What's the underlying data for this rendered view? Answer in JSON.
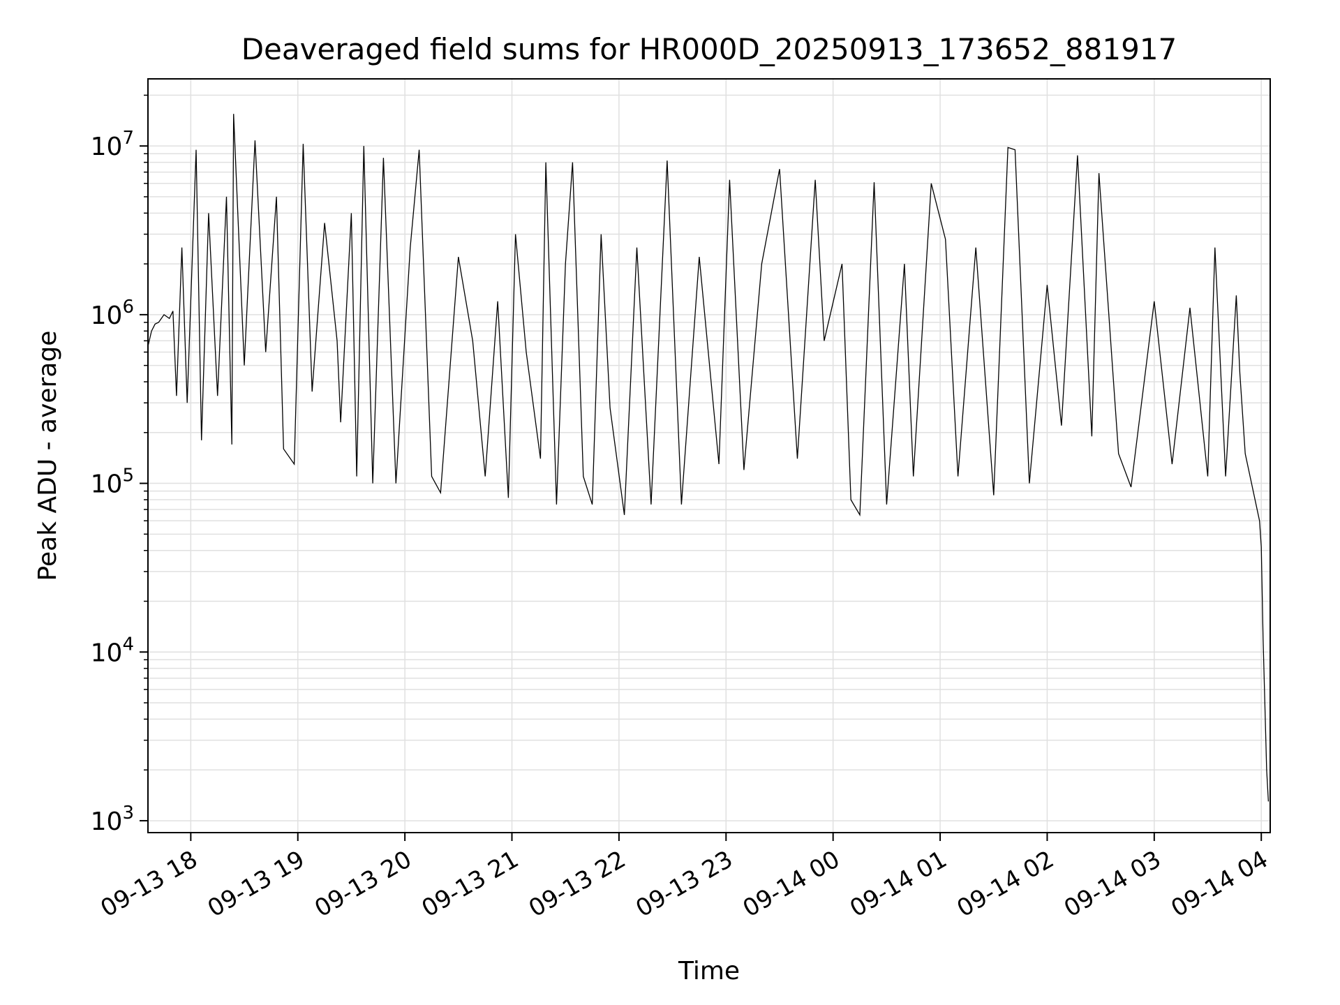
{
  "chart_data": {
    "type": "line",
    "title": "Deaveraged field sums for HR000D_20250913_173652_881917",
    "xlabel": "Time",
    "ylabel": "Peak ADU - average",
    "yscale": "log",
    "xlim": [
      "2025-09-13 17:36",
      "2025-09-14 04:05"
    ],
    "ylim": [
      850,
      25000000
    ],
    "grid": true,
    "line_color": "#000000",
    "grid_color": "#e0e0e0",
    "x_ticks": [
      {
        "t": "2025-09-13 18:00",
        "label": "09-13 18"
      },
      {
        "t": "2025-09-13 19:00",
        "label": "09-13 19"
      },
      {
        "t": "2025-09-13 20:00",
        "label": "09-13 20"
      },
      {
        "t": "2025-09-13 21:00",
        "label": "09-13 21"
      },
      {
        "t": "2025-09-13 22:00",
        "label": "09-13 22"
      },
      {
        "t": "2025-09-13 23:00",
        "label": "09-13 23"
      },
      {
        "t": "2025-09-14 00:00",
        "label": "09-14 00"
      },
      {
        "t": "2025-09-14 01:00",
        "label": "09-14 01"
      },
      {
        "t": "2025-09-14 02:00",
        "label": "09-14 02"
      },
      {
        "t": "2025-09-14 03:00",
        "label": "09-14 03"
      },
      {
        "t": "2025-09-14 04:00",
        "label": "09-14 04"
      }
    ],
    "y_ticks": [
      {
        "value": 1000,
        "base": "10",
        "exp": "3"
      },
      {
        "value": 10000,
        "base": "10",
        "exp": "4"
      },
      {
        "value": 100000,
        "base": "10",
        "exp": "5"
      },
      {
        "value": 1000000,
        "base": "10",
        "exp": "6"
      },
      {
        "value": 10000000,
        "base": "10",
        "exp": "7"
      }
    ],
    "series": [
      {
        "points": [
          [
            "2025-09-13 17:36",
            650000
          ],
          [
            "2025-09-13 17:38",
            800000
          ],
          [
            "2025-09-13 17:40",
            880000
          ],
          [
            "2025-09-13 17:42",
            900000
          ],
          [
            "2025-09-13 17:45",
            1000000
          ],
          [
            "2025-09-13 17:48",
            950000
          ],
          [
            "2025-09-13 17:50",
            1050000
          ],
          [
            "2025-09-13 17:52",
            330000
          ],
          [
            "2025-09-13 17:55",
            2500000
          ],
          [
            "2025-09-13 17:58",
            300000
          ],
          [
            "2025-09-13 18:03",
            9500000
          ],
          [
            "2025-09-13 18:06",
            180000
          ],
          [
            "2025-09-13 18:10",
            4000000
          ],
          [
            "2025-09-13 18:15",
            330000
          ],
          [
            "2025-09-13 18:20",
            5000000
          ],
          [
            "2025-09-13 18:23",
            170000
          ],
          [
            "2025-09-13 18:24",
            15500000
          ],
          [
            "2025-09-13 18:30",
            500000
          ],
          [
            "2025-09-13 18:36",
            10800000
          ],
          [
            "2025-09-13 18:42",
            600000
          ],
          [
            "2025-09-13 18:48",
            5000000
          ],
          [
            "2025-09-13 18:52",
            160000
          ],
          [
            "2025-09-13 18:58",
            130000
          ],
          [
            "2025-09-13 19:03",
            10300000
          ],
          [
            "2025-09-13 19:08",
            350000
          ],
          [
            "2025-09-13 19:15",
            3500000
          ],
          [
            "2025-09-13 19:22",
            700000
          ],
          [
            "2025-09-13 19:24",
            230000
          ],
          [
            "2025-09-13 19:30",
            4000000
          ],
          [
            "2025-09-13 19:33",
            110000
          ],
          [
            "2025-09-13 19:37",
            10000000
          ],
          [
            "2025-09-13 19:42",
            100000
          ],
          [
            "2025-09-13 19:48",
            8500000
          ],
          [
            "2025-09-13 19:55",
            100000
          ],
          [
            "2025-09-13 20:03",
            2500000
          ],
          [
            "2025-09-13 20:08",
            9500000
          ],
          [
            "2025-09-13 20:15",
            110000
          ],
          [
            "2025-09-13 20:20",
            88000
          ],
          [
            "2025-09-13 20:30",
            2200000
          ],
          [
            "2025-09-13 20:38",
            700000
          ],
          [
            "2025-09-13 20:45",
            110000
          ],
          [
            "2025-09-13 20:52",
            1200000
          ],
          [
            "2025-09-13 20:58",
            82000
          ],
          [
            "2025-09-13 21:02",
            3000000
          ],
          [
            "2025-09-13 21:08",
            600000
          ],
          [
            "2025-09-13 21:16",
            140000
          ],
          [
            "2025-09-13 21:19",
            8000000
          ],
          [
            "2025-09-13 21:25",
            75000
          ],
          [
            "2025-09-13 21:30",
            2000000
          ],
          [
            "2025-09-13 21:34",
            8000000
          ],
          [
            "2025-09-13 21:40",
            110000
          ],
          [
            "2025-09-13 21:45",
            75000
          ],
          [
            "2025-09-13 21:50",
            3000000
          ],
          [
            "2025-09-13 21:55",
            280000
          ],
          [
            "2025-09-13 22:03",
            65000
          ],
          [
            "2025-09-13 22:10",
            2500000
          ],
          [
            "2025-09-13 22:18",
            75000
          ],
          [
            "2025-09-13 22:27",
            8200000
          ],
          [
            "2025-09-13 22:35",
            75000
          ],
          [
            "2025-09-13 22:45",
            2200000
          ],
          [
            "2025-09-13 22:56",
            130000
          ],
          [
            "2025-09-13 23:02",
            6300000
          ],
          [
            "2025-09-13 23:10",
            120000
          ],
          [
            "2025-09-13 23:20",
            2000000
          ],
          [
            "2025-09-13 23:30",
            7300000
          ],
          [
            "2025-09-13 23:40",
            140000
          ],
          [
            "2025-09-13 23:50",
            6300000
          ],
          [
            "2025-09-13 23:55",
            700000
          ],
          [
            "2025-09-14 00:05",
            2000000
          ],
          [
            "2025-09-14 00:10",
            80000
          ],
          [
            "2025-09-14 00:15",
            65000
          ],
          [
            "2025-09-14 00:23",
            6100000
          ],
          [
            "2025-09-14 00:30",
            75000
          ],
          [
            "2025-09-14 00:40",
            2000000
          ],
          [
            "2025-09-14 00:45",
            110000
          ],
          [
            "2025-09-14 00:55",
            6000000
          ],
          [
            "2025-09-14 01:03",
            2800000
          ],
          [
            "2025-09-14 01:10",
            110000
          ],
          [
            "2025-09-14 01:20",
            2500000
          ],
          [
            "2025-09-14 01:30",
            85000
          ],
          [
            "2025-09-14 01:38",
            9800000
          ],
          [
            "2025-09-14 01:42",
            9500000
          ],
          [
            "2025-09-14 01:50",
            100000
          ],
          [
            "2025-09-14 02:00",
            1500000
          ],
          [
            "2025-09-14 02:08",
            220000
          ],
          [
            "2025-09-14 02:17",
            8800000
          ],
          [
            "2025-09-14 02:25",
            190000
          ],
          [
            "2025-09-14 02:29",
            6900000
          ],
          [
            "2025-09-14 02:40",
            150000
          ],
          [
            "2025-09-14 02:47",
            95000
          ],
          [
            "2025-09-14 03:00",
            1200000
          ],
          [
            "2025-09-14 03:10",
            130000
          ],
          [
            "2025-09-14 03:20",
            1100000
          ],
          [
            "2025-09-14 03:30",
            110000
          ],
          [
            "2025-09-14 03:34",
            2500000
          ],
          [
            "2025-09-14 03:40",
            110000
          ],
          [
            "2025-09-14 03:46",
            1300000
          ],
          [
            "2025-09-14 03:48",
            450000
          ],
          [
            "2025-09-14 03:51",
            150000
          ],
          [
            "2025-09-14 03:59",
            60000
          ],
          [
            "2025-09-14 04:00",
            42000
          ],
          [
            "2025-09-14 04:01",
            12000
          ],
          [
            "2025-09-14 04:02",
            5000
          ],
          [
            "2025-09-14 04:03",
            2000
          ],
          [
            "2025-09-14 04:04",
            1300
          ]
        ]
      }
    ]
  }
}
